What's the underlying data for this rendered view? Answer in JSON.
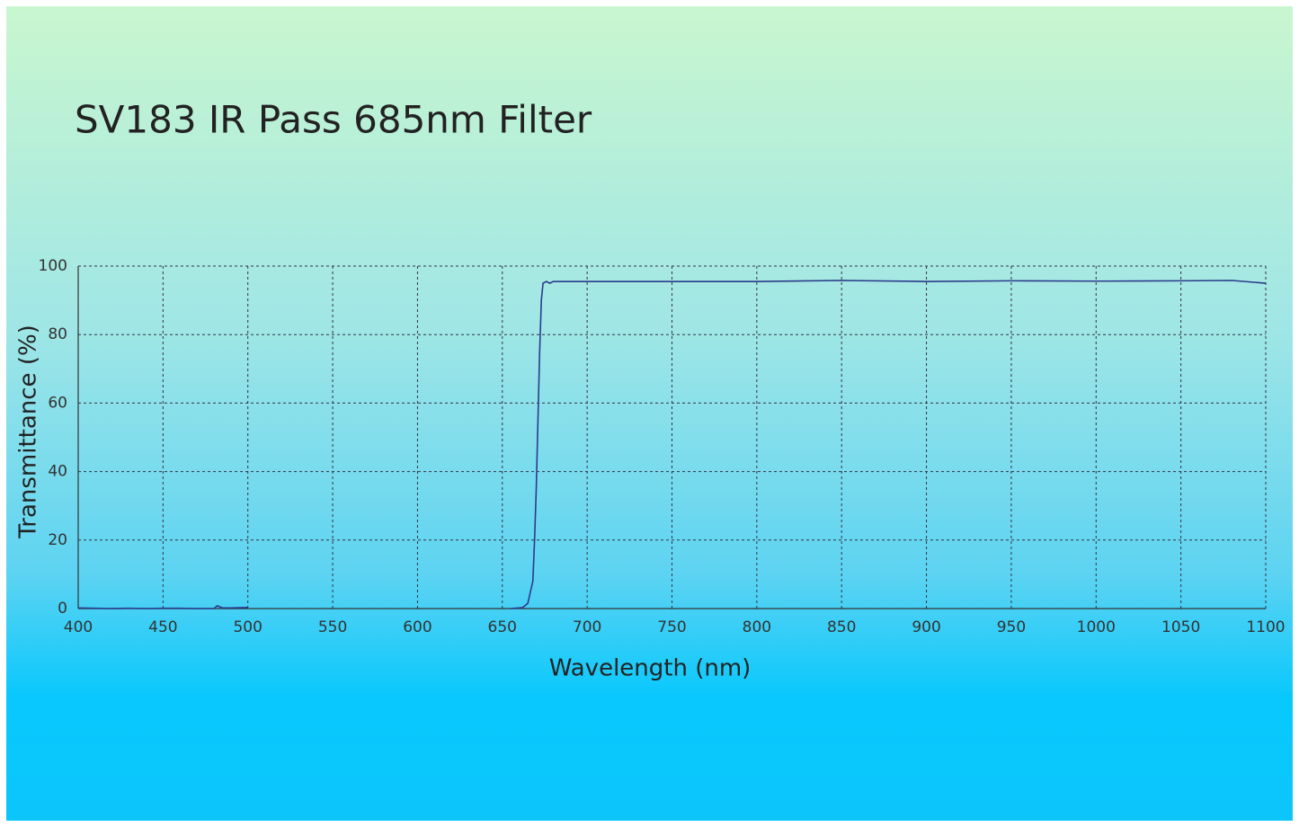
{
  "chart_data": {
    "type": "line",
    "title": "SV183 IR Pass 685nm Filter",
    "x_label": "Wavelength (nm)",
    "y_label": "Transmittance (%)",
    "x": [
      400,
      410,
      420,
      430,
      440,
      450,
      460,
      470,
      480,
      482,
      485,
      490,
      500,
      578,
      655,
      662,
      665,
      668,
      669,
      670,
      671,
      672,
      673,
      674,
      676,
      678,
      680,
      700,
      750,
      800,
      850,
      900,
      950,
      1000,
      1050,
      1080,
      1100
    ],
    "values": [
      0.2,
      0.1,
      0,
      0.1,
      0,
      0.1,
      0.1,
      0,
      0,
      0.8,
      0.2,
      0.2,
      0.3,
      null,
      0,
      0.3,
      1.5,
      8,
      20,
      35,
      55,
      75,
      90,
      95,
      95.5,
      95,
      95.5,
      95.5,
      95.5,
      95.5,
      95.8,
      95.5,
      95.7,
      95.6,
      95.7,
      95.8,
      95
    ],
    "color": "#2b3a8c",
    "xlim": [
      400,
      1100
    ],
    "xticks": [
      400,
      450,
      500,
      550,
      600,
      650,
      700,
      750,
      800,
      850,
      900,
      950,
      1000,
      1050,
      1100
    ],
    "ylim": [
      0,
      100
    ],
    "yticks": [
      0,
      20,
      40,
      60,
      80,
      100
    ],
    "grid": true
  }
}
